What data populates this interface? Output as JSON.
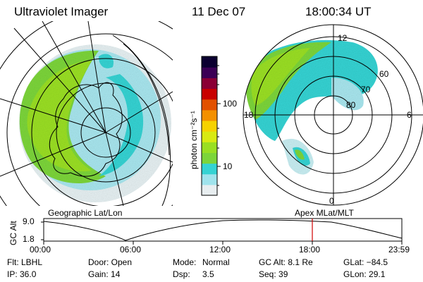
{
  "header": {
    "instrument": "Ultraviolet Imager",
    "date": "11 Dec 07",
    "time": "18:00:34 UT"
  },
  "colorbar": {
    "unit_label": "photon cm⁻²s⁻¹",
    "ticks": [
      "100",
      "10"
    ],
    "scale": "log",
    "colors": [
      "#e8eef0",
      "#9fe3ec",
      "#35d3d3",
      "#7cd53a",
      "#9adf22",
      "#d8ea12",
      "#f6d200",
      "#f39000",
      "#e25000",
      "#c80000",
      "#8a0035",
      "#3b0055",
      "#0b0030"
    ]
  },
  "left_map": {
    "label": "Geographic Lat/Lon"
  },
  "right_map": {
    "label": "Apex MLat/MLT",
    "mlt_labels": {
      "top": "12",
      "left": "18",
      "right": "6",
      "bottom": "0"
    },
    "lat_labels": [
      "60",
      "70",
      "80"
    ]
  },
  "altitude_plot": {
    "axis_label": "GC Alt",
    "y_ticks": [
      "9.0",
      "1.8"
    ],
    "x_ticks": [
      "00:00",
      "06:00",
      "12:00",
      "18:00",
      "23:59"
    ],
    "current_time_hours": 18.0,
    "marker_color": "#d00000"
  },
  "footer": {
    "filter": "Flt: LBHL",
    "ip": "IP: 36.0",
    "door": "Door: Open",
    "gain": "Gain: 14",
    "mode_label": "Mode:",
    "mode_value": "Normal",
    "dsp_label": "Dsp:",
    "dsp_value": "3.5",
    "gc_alt": "GC Alt: 8.1 Re",
    "seq": "Seq: 39",
    "glat": "GLat: −84.5",
    "glon": "GLon: 29.1"
  }
}
